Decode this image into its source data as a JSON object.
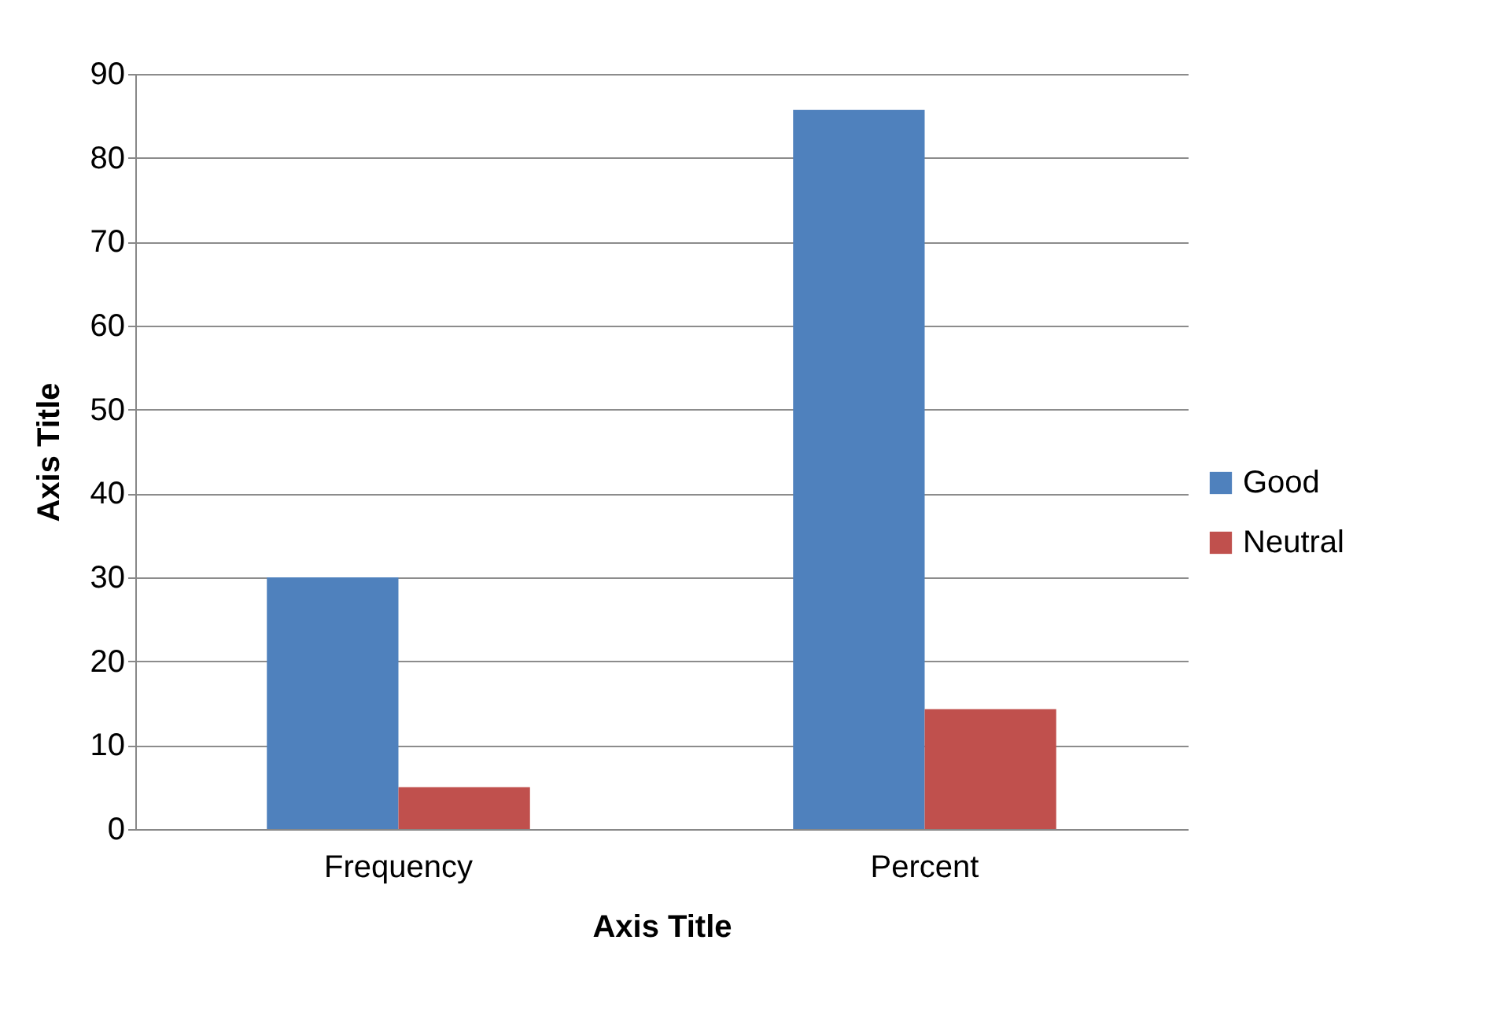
{
  "chart_data": {
    "type": "bar",
    "xlabel": "Axis Title",
    "ylabel": "Axis Title",
    "categories": [
      "Frequency",
      "Percent"
    ],
    "series": [
      {
        "name": "Good",
        "color": "#4f81bd",
        "values": [
          30,
          85.7
        ]
      },
      {
        "name": "Neutral",
        "color": "#c0504d",
        "values": [
          5,
          14.3
        ]
      }
    ],
    "ylim": [
      0,
      90
    ],
    "yticks": [
      0,
      10,
      20,
      30,
      40,
      50,
      60,
      70,
      80,
      90
    ],
    "grid": "y",
    "legend": "right"
  }
}
